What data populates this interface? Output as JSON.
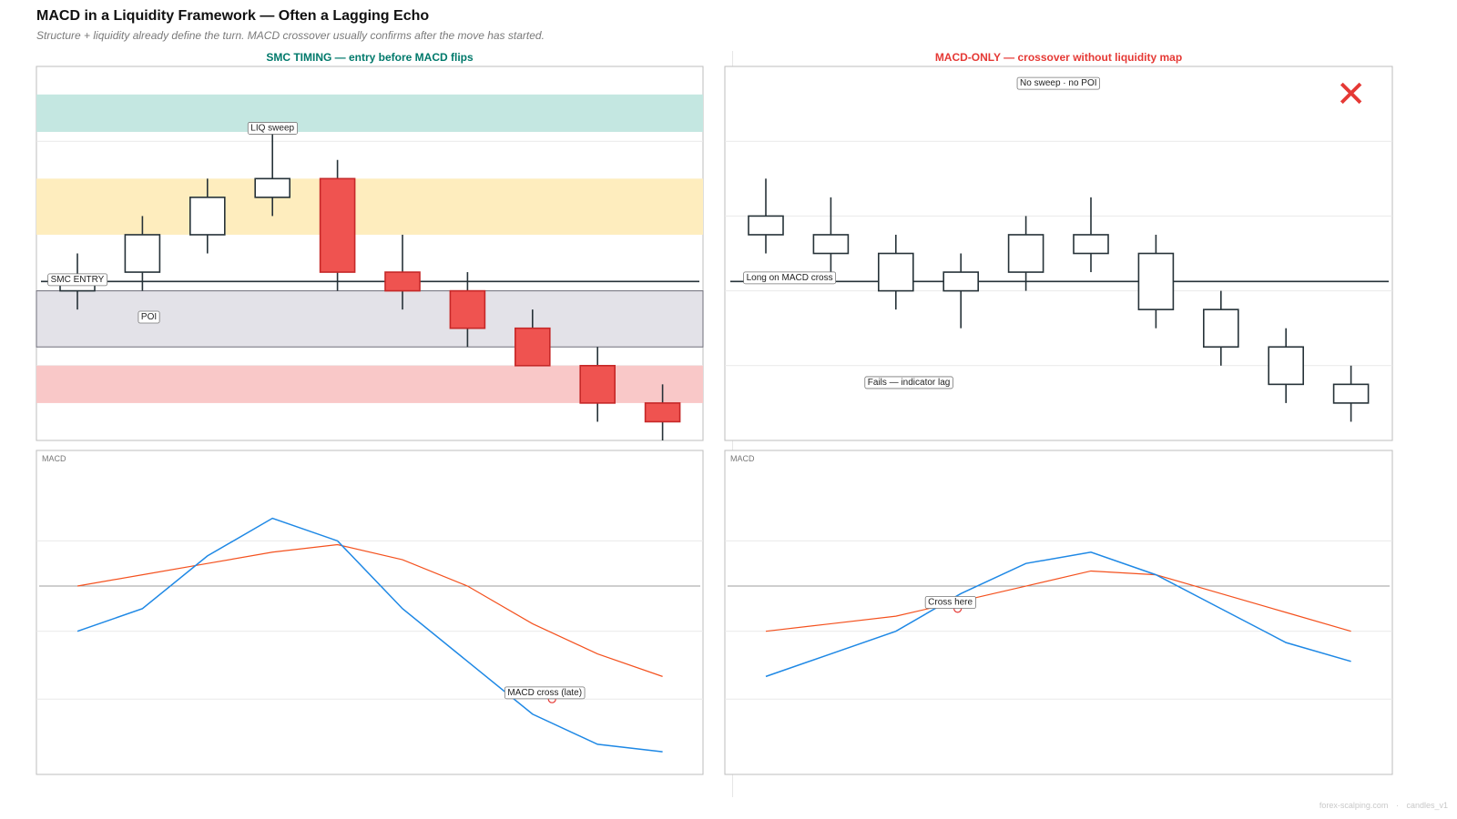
{
  "title": "MACD in a Liquidity Framework — Often a Lagging Echo",
  "subtitle": "Structure + liquidity already define the turn. MACD crossover usually confirms after the move has started.",
  "footer": {
    "site": "forex-scalping.com",
    "sep": "·",
    "tag": "candles_v1"
  },
  "colors": {
    "bull": "#ffffff",
    "bear": "#ef5350",
    "wick": "#263238",
    "macd": "#1e88e5",
    "signal": "#f4511e",
    "left_title": "#00796b",
    "right_title": "#e53935"
  },
  "chart_data": [
    {
      "type": "candlestick",
      "title": "SMC TIMING — entry before MACD flips",
      "ylim": [
        0,
        20
      ],
      "zones": [
        {
          "kind": "liquidity",
          "y0": 16.5,
          "y1": 18.5,
          "color": "#c4e7e1"
        },
        {
          "kind": "supply",
          "y0": 11,
          "y1": 14,
          "color": "#feedbe"
        },
        {
          "kind": "poi",
          "y0": 5,
          "y1": 8,
          "color": "#e3e2e8"
        },
        {
          "kind": "demand",
          "y0": 2,
          "y1": 4,
          "color": "#f9c8c8"
        }
      ],
      "level": 8.5,
      "candles": [
        {
          "o": 8,
          "h": 10,
          "l": 7,
          "c": 8.5
        },
        {
          "o": 9,
          "h": 12,
          "l": 8,
          "c": 11
        },
        {
          "o": 11,
          "h": 14,
          "l": 10,
          "c": 13
        },
        {
          "o": 13,
          "h": 16.5,
          "l": 12,
          "c": 14
        },
        {
          "o": 14,
          "h": 15,
          "l": 8,
          "c": 9
        },
        {
          "o": 9,
          "h": 11,
          "l": 7,
          "c": 8
        },
        {
          "o": 8,
          "h": 9,
          "l": 5,
          "c": 6
        },
        {
          "o": 6,
          "h": 7,
          "l": 4,
          "c": 4
        },
        {
          "o": 4,
          "h": 5,
          "l": 1,
          "c": 2
        },
        {
          "o": 2,
          "h": 3,
          "l": 0,
          "c": 1
        }
      ],
      "annotations": [
        {
          "text": "LIQ sweep",
          "x": 3,
          "y": 16.7,
          "anchor": "middle"
        },
        {
          "text": "SMC ENTRY",
          "x": 0,
          "y": 8.6,
          "anchor": "middle"
        },
        {
          "text": "POI",
          "x": 1.1,
          "y": 6.6,
          "anchor": "middle"
        }
      ],
      "macd_panel": {
        "label": "MACD",
        "ylim": [
          -2.5,
          1.8
        ],
        "macd": [
          -0.6,
          -0.3,
          0.4,
          0.9,
          0.6,
          -0.3,
          -1.0,
          -1.7,
          -2.1,
          -2.2
        ],
        "signal": [
          0.0,
          0.15,
          0.3,
          0.45,
          0.55,
          0.35,
          0.0,
          -0.5,
          -0.9,
          -1.2
        ],
        "cross_index": 7.3,
        "cross_value": -1.5,
        "cross_label": "MACD cross (late)"
      }
    },
    {
      "type": "candlestick",
      "title": "MACD-ONLY — crossover without liquidity map",
      "ylim": [
        0,
        20
      ],
      "zones": [],
      "level": 8.5,
      "candles": [
        {
          "o": 11,
          "h": 14,
          "l": 10,
          "c": 12
        },
        {
          "o": 10,
          "h": 13,
          "l": 9,
          "c": 11
        },
        {
          "o": 8,
          "h": 11,
          "l": 7,
          "c": 10
        },
        {
          "o": 8,
          "h": 10,
          "l": 6,
          "c": 9
        },
        {
          "o": 9,
          "h": 12,
          "l": 8,
          "c": 11
        },
        {
          "o": 10,
          "h": 13,
          "l": 9,
          "c": 11
        },
        {
          "o": 7,
          "h": 11,
          "l": 6,
          "c": 10
        },
        {
          "o": 5,
          "h": 8,
          "l": 4,
          "c": 7
        },
        {
          "o": 3,
          "h": 6,
          "l": 2,
          "c": 5
        },
        {
          "o": 2,
          "h": 4,
          "l": 1,
          "c": 3
        }
      ],
      "annotations": [
        {
          "text": "No sweep · no POI",
          "x": 4.5,
          "y": 19.1,
          "anchor": "middle"
        },
        {
          "text": "Long on MACD cross",
          "x": -0.3,
          "y": 8.7,
          "anchor": "start"
        },
        {
          "text": "Fails — indicator lag",
          "x": 2.2,
          "y": 3.1,
          "anchor": "middle"
        }
      ],
      "marker": {
        "symbol": "✕",
        "x": 9.0,
        "y": 18.4
      },
      "macd_panel": {
        "label": "MACD",
        "ylim": [
          -2.5,
          1.8
        ],
        "macd": [
          -1.2,
          -0.9,
          -0.6,
          -0.1,
          0.3,
          0.45,
          0.15,
          -0.3,
          -0.75,
          -1.0
        ],
        "signal": [
          -0.6,
          -0.5,
          -0.4,
          -0.2,
          0.0,
          0.2,
          0.15,
          -0.1,
          -0.35,
          -0.6
        ],
        "cross_index": 2.95,
        "cross_value": -0.3,
        "cross_label": "Cross here"
      }
    }
  ]
}
